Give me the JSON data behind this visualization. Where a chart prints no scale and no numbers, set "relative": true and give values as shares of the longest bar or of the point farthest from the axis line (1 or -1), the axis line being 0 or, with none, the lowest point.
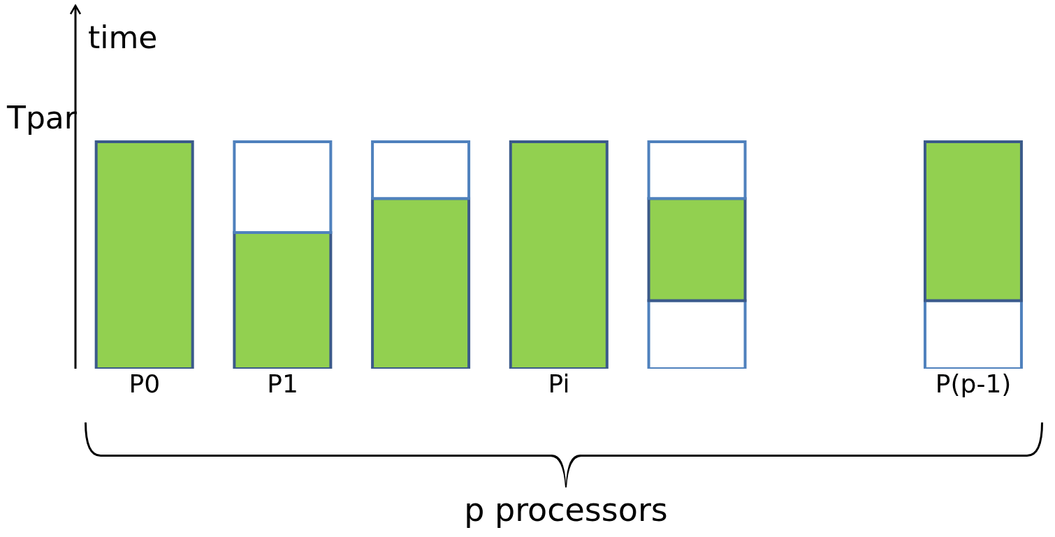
{
  "chart_data": {
    "type": "bar",
    "relative": true,
    "stacked": true,
    "ylabel": "time",
    "xlabel": "p processors",
    "annotations": [
      "Tpar"
    ],
    "categories": [
      "P0",
      "P1",
      null,
      "Pi",
      null,
      null,
      "P(p-1)"
    ],
    "series": [
      {
        "color": "#ffffff",
        "values": [
          0,
          0,
          0,
          0,
          0.3,
          null,
          0.3
        ]
      },
      {
        "color": "#92d050",
        "values": [
          1,
          0.6,
          0.75,
          1,
          0.45,
          null,
          0.7
        ]
      },
      {
        "color": "#ffffff",
        "values": [
          0,
          0.4,
          0.25,
          0,
          0.25,
          null,
          0
        ]
      }
    ]
  }
}
